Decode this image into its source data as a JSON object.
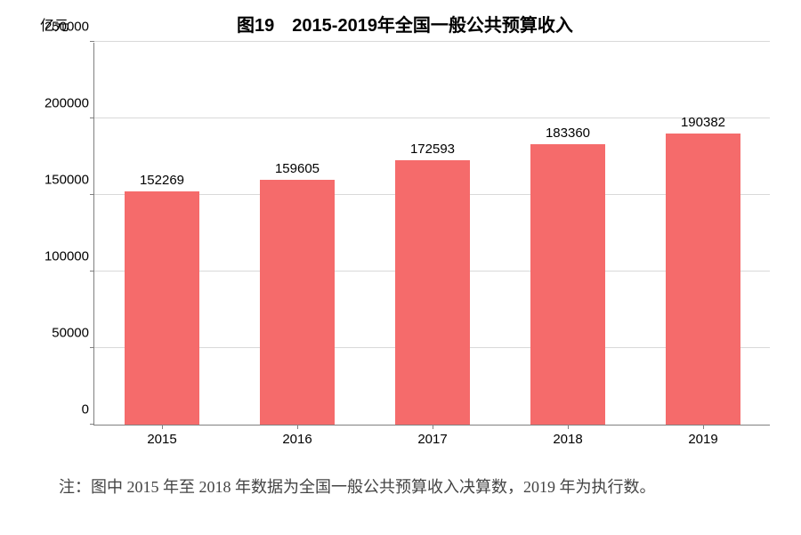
{
  "chart": {
    "type": "bar",
    "title": "图19　2015-2019年全国一般公共预算收入",
    "title_fontsize": 20,
    "y_unit": "亿元",
    "y_unit_fontsize": 16,
    "categories": [
      "2015",
      "2016",
      "2017",
      "2018",
      "2019"
    ],
    "values": [
      152269,
      159605,
      172593,
      183360,
      190382
    ],
    "bar_color": "#f56b6b",
    "grid_color": "#d9d9d9",
    "axis_color": "#808080",
    "text_color": "#000000",
    "background_color": "#ffffff",
    "ylim": [
      0,
      250000
    ],
    "ytick_step": 50000,
    "yticks": [
      0,
      50000,
      100000,
      150000,
      200000,
      250000
    ],
    "tick_fontsize": 15,
    "value_label_fontsize": 15,
    "bar_width_ratio": 0.55
  },
  "footnote": {
    "text": "注：图中 2015 年至 2018 年数据为全国一般公共预算收入决算数，2019 年为执行数。",
    "fontsize": 18,
    "color": "#444444"
  }
}
